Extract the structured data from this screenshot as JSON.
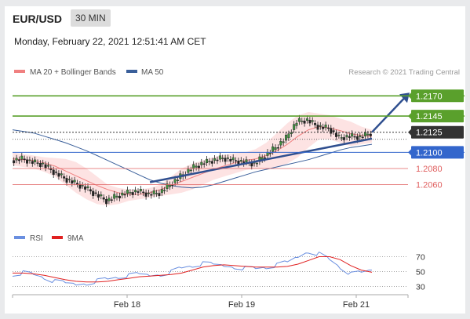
{
  "header": {
    "pair": "EUR/USD",
    "timeframe": "30 MIN"
  },
  "timestamp": "Monday, February 22, 2021 12:51:41 AM CET",
  "credit": "Research © 2021 Trading Central",
  "legend": {
    "ma20": {
      "label": "MA 20 + Bollinger Bands",
      "color": "#f08080"
    },
    "ma50": {
      "label": "MA 50",
      "color": "#3a5f9a"
    }
  },
  "osc_legend": {
    "rsi": {
      "label": "RSI",
      "color": "#6a8fe0"
    },
    "ma9": {
      "label": "9MA",
      "color": "#e02020"
    }
  },
  "colors": {
    "resistance": "#5aa02c",
    "support_blue": "#3366cc",
    "support_red": "#e06060",
    "current": "#333333",
    "arrow": "#2f4f8f",
    "band": "#fde0e0"
  },
  "chart_data": [
    {
      "type": "line",
      "title": "",
      "x_ticks": [
        "Feb 18",
        "Feb 19",
        "Feb 21"
      ],
      "ylim": [
        1.2015,
        1.218
      ],
      "levels": [
        {
          "label": "1.2170",
          "value": 1.217,
          "kind": "resistance"
        },
        {
          "label": "1.2145",
          "value": 1.2145,
          "kind": "resistance"
        },
        {
          "label": "1.2125",
          "value": 1.2125,
          "kind": "current"
        },
        {
          "label": "1.2100",
          "value": 1.21,
          "kind": "pivot"
        },
        {
          "label": "1.2080",
          "value": 1.208,
          "kind": "support"
        },
        {
          "label": "1.2060",
          "value": 1.206,
          "kind": "support"
        }
      ],
      "series": [
        {
          "name": "MA 50",
          "values": [
            1.2128,
            1.2126,
            1.2124,
            1.212,
            1.2116,
            1.2112,
            1.2107,
            1.2102,
            1.2096,
            1.209,
            1.2084,
            1.2078,
            1.2072,
            1.2066,
            1.2062,
            1.2059,
            1.2057,
            1.2056,
            1.2057,
            1.206,
            1.2064,
            1.2068,
            1.2072,
            1.2076,
            1.2079,
            1.2082,
            1.2085,
            1.2088,
            1.2091,
            1.2095,
            1.2099,
            1.2103,
            1.2106,
            1.2108,
            1.211
          ]
        }
      ],
      "ma20": [
        1.2092,
        1.2091,
        1.209,
        1.2087,
        1.2083,
        1.2077,
        1.2071,
        1.2065,
        1.2059,
        1.2054,
        1.205,
        1.2048,
        1.2048,
        1.205,
        1.2054,
        1.2059,
        1.2064,
        1.2069,
        1.2074,
        1.2079,
        1.2083,
        1.2087,
        1.209,
        1.2092,
        1.2096,
        1.2102,
        1.211,
        1.212,
        1.2128,
        1.2132,
        1.213,
        1.2127,
        1.2123,
        1.2121,
        1.212
      ],
      "band_upper": [
        1.21,
        1.2098,
        1.2096,
        1.2094,
        1.2093,
        1.2092,
        1.2088,
        1.208,
        1.207,
        1.206,
        1.2056,
        1.2054,
        1.2054,
        1.2056,
        1.206,
        1.207,
        1.208,
        1.2086,
        1.209,
        1.2094,
        1.2097,
        1.2099,
        1.21,
        1.2104,
        1.2112,
        1.2124,
        1.2136,
        1.2146,
        1.215,
        1.2148,
        1.2146,
        1.2142,
        1.2138,
        1.2132,
        1.2128
      ],
      "band_lower": [
        1.2084,
        1.2082,
        1.208,
        1.2076,
        1.207,
        1.206,
        1.205,
        1.2042,
        1.2036,
        1.2034,
        1.2036,
        1.204,
        1.2042,
        1.2044,
        1.2046,
        1.2048,
        1.205,
        1.2054,
        1.206,
        1.2066,
        1.207,
        1.2074,
        1.2078,
        1.208,
        1.208,
        1.2082,
        1.2086,
        1.2094,
        1.2106,
        1.2116,
        1.2116,
        1.2112,
        1.2108,
        1.211,
        1.2112
      ],
      "close": [
        1.209,
        1.2092,
        1.2088,
        1.2085,
        1.2076,
        1.2068,
        1.2062,
        1.2056,
        1.2048,
        1.204,
        1.2046,
        1.205,
        1.2052,
        1.2048,
        1.205,
        1.206,
        1.207,
        1.208,
        1.2086,
        1.209,
        1.2093,
        1.209,
        1.2088,
        1.2086,
        1.2096,
        1.2106,
        1.2118,
        1.2138,
        1.214,
        1.2132,
        1.213,
        1.2118,
        1.212,
        1.2119,
        1.2124
      ],
      "trendline": {
        "from": 1.2063,
        "to": 1.2117
      },
      "arrow_target": 1.217
    },
    {
      "type": "line",
      "title": "",
      "ylim": [
        20,
        80
      ],
      "y_ticks": [
        70,
        50,
        30
      ],
      "series": [
        {
          "name": "RSI",
          "values": [
            47,
            49,
            46,
            42,
            36,
            34,
            33,
            35,
            38,
            40,
            43,
            44,
            46,
            45,
            47,
            50,
            55,
            58,
            60,
            59,
            58,
            57,
            55,
            54,
            56,
            58,
            62,
            70,
            78,
            74,
            66,
            56,
            46,
            48,
            52
          ]
        },
        {
          "name": "9MA",
          "values": [
            48,
            48,
            47,
            45,
            42,
            39,
            37,
            36,
            36,
            37,
            39,
            41,
            43,
            44,
            45,
            46,
            48,
            52,
            56,
            58,
            59,
            58,
            57,
            56,
            56,
            56,
            57,
            60,
            65,
            70,
            70,
            66,
            58,
            52,
            49
          ]
        }
      ]
    }
  ]
}
